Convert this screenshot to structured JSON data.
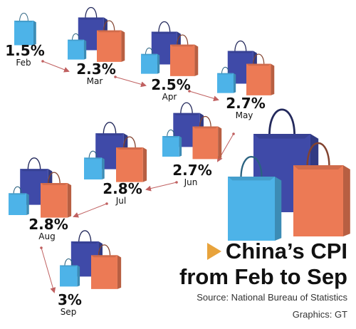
{
  "chart_data": {
    "type": "line",
    "categories": [
      "Feb",
      "Mar",
      "Apr",
      "May",
      "Jun",
      "Jul",
      "Aug",
      "Sep"
    ],
    "values": [
      1.5,
      2.3,
      2.5,
      2.7,
      2.7,
      2.8,
      2.8,
      3
    ],
    "value_labels": [
      "1.5%",
      "2.3%",
      "2.5%",
      "2.7%",
      "2.7%",
      "2.8%",
      "2.8%",
      "3%"
    ],
    "unit": "%",
    "title_line1": "China’s CPI",
    "title_line2": "from Feb to Sep",
    "source": "Source: National Bureau of Statistics",
    "credit": "Graphics: GT"
  },
  "colors": {
    "bag_blue": "#4db3e8",
    "bag_navy": "#3f4aa8",
    "bag_orange": "#ec7a55",
    "arrow": "#c06060",
    "title_marker": "#e8a33c"
  }
}
